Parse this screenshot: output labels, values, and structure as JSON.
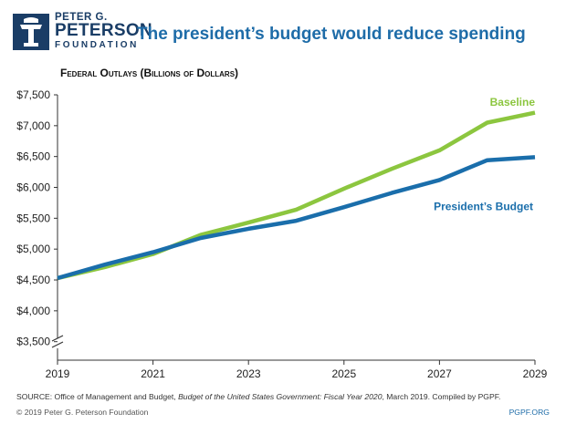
{
  "brand": {
    "line1": "PETER G.",
    "line2": "PETERSON",
    "line3": "FOUNDATION",
    "color": "#1a3d66"
  },
  "headline": "The president’s budget would reduce spending",
  "subtitle": "Federal Outlays (Billions of Dollars)",
  "chart_data": {
    "type": "line",
    "title": "Federal Outlays (Billions of Dollars)",
    "xlabel": "",
    "ylabel": "",
    "x": [
      2019,
      2020,
      2021,
      2022,
      2023,
      2024,
      2025,
      2026,
      2027,
      2028,
      2029
    ],
    "xticks": [
      "2019",
      "2021",
      "2023",
      "2025",
      "2027",
      "2029"
    ],
    "xtick_values": [
      2019,
      2021,
      2023,
      2025,
      2027,
      2029
    ],
    "yticks": [
      "$3,500",
      "$4,000",
      "$4,500",
      "$5,000",
      "$5,500",
      "$6,000",
      "$6,500",
      "$7,000",
      "$7,500"
    ],
    "ytick_values": [
      3500,
      4000,
      4500,
      5000,
      5500,
      6000,
      6500,
      7000,
      7500
    ],
    "ylim": [
      3200,
      7500
    ],
    "axis_break": true,
    "grid": false,
    "series": [
      {
        "name": "Baseline",
        "color": "#8cc63f",
        "values": [
          4530,
          4710,
          4920,
          5230,
          5430,
          5640,
          5980,
          6300,
          6600,
          7050,
          7210
        ]
      },
      {
        "name": "President’s Budget",
        "color": "#1a6eab",
        "values": [
          4530,
          4750,
          4950,
          5180,
          5330,
          5460,
          5680,
          5910,
          6120,
          6440,
          6490
        ]
      }
    ]
  },
  "footer": {
    "source_prefix": "SOURCE: Office of Management and Budget, ",
    "source_italic": "Budget of the United States Government: Fiscal Year 2020",
    "source_suffix": ", March 2019. Compiled by PGPF.",
    "copyright": "© 2019 Peter G. Peterson Foundation",
    "site": "PGPF.ORG"
  }
}
